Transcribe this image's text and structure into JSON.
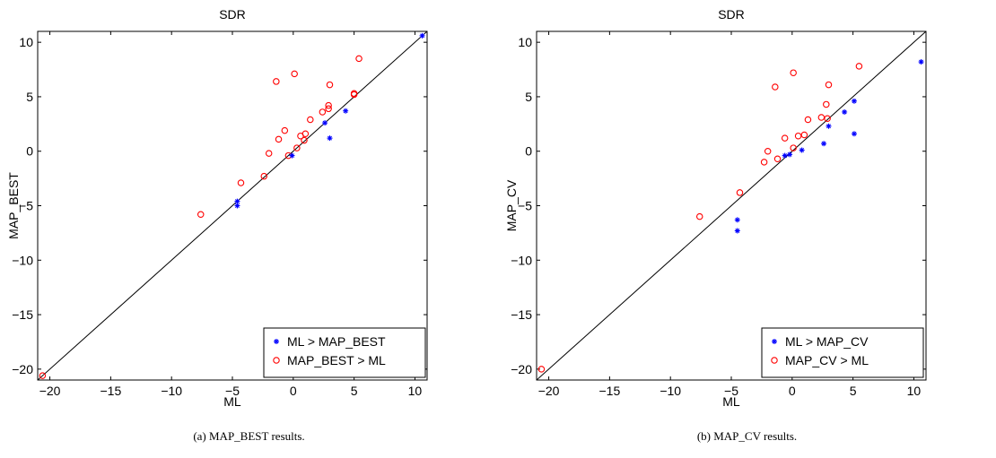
{
  "chart_data": [
    {
      "type": "scatter",
      "title": "SDR",
      "xlabel": "ML",
      "ylabel": "MAP_BEST",
      "xlim": [
        -21,
        11
      ],
      "ylim": [
        -21,
        11
      ],
      "xticks": [
        -20,
        -15,
        -10,
        -5,
        0,
        5,
        10
      ],
      "yticks": [
        10,
        5,
        0,
        -5,
        -10,
        -15,
        -20
      ],
      "xtick_labels": [
        "−20",
        "−15",
        "−10",
        "−5",
        "0",
        "5",
        "10"
      ],
      "ytick_labels": [
        "10",
        "5",
        "0",
        "−5",
        "−10",
        "−15",
        "−20"
      ],
      "diagonal": [
        [
          -21,
          -21
        ],
        [
          11,
          11
        ]
      ],
      "legend_position": "bottom-right",
      "caption": "(a) MAP_BEST results.",
      "series": [
        {
          "name": "ML > MAP_BEST",
          "marker": "asterisk",
          "color": "#0000ff",
          "x": [
            10.6,
            4.3,
            2.6,
            3.0,
            -0.1,
            -4.6,
            -4.6
          ],
          "y": [
            10.6,
            3.7,
            2.6,
            1.2,
            -0.4,
            -4.6,
            -5.0
          ]
        },
        {
          "name": "MAP_BEST > ML",
          "marker": "circle",
          "color": "#ff0000",
          "x": [
            -1.4,
            0.1,
            5.4,
            3.0,
            2.9,
            2.9,
            5.0,
            5.0,
            2.4,
            1.4,
            -0.7,
            0.6,
            1.0,
            0.9,
            0.3,
            -1.2,
            -2.0,
            -0.4,
            -2.4,
            -4.3,
            -7.6,
            -20.6
          ],
          "y": [
            6.4,
            7.1,
            8.5,
            6.1,
            4.2,
            3.9,
            5.3,
            5.2,
            3.6,
            2.9,
            1.9,
            1.4,
            1.6,
            1.0,
            0.3,
            1.1,
            -0.2,
            -0.4,
            -2.3,
            -2.9,
            -5.8,
            -20.6
          ]
        }
      ]
    },
    {
      "type": "scatter",
      "title": "SDR",
      "xlabel": "ML",
      "ylabel": "MAP_CV",
      "xlim": [
        -21,
        11
      ],
      "ylim": [
        -21,
        11
      ],
      "xticks": [
        -20,
        -15,
        -10,
        -5,
        0,
        5,
        10
      ],
      "yticks": [
        10,
        5,
        0,
        -5,
        -10,
        -15,
        -20
      ],
      "xtick_labels": [
        "−20",
        "−15",
        "−10",
        "−5",
        "0",
        "5",
        "10"
      ],
      "ytick_labels": [
        "10",
        "5",
        "0",
        "−5",
        "−10",
        "−15",
        "−20"
      ],
      "diagonal": [
        [
          -21,
          -21
        ],
        [
          11,
          11
        ]
      ],
      "legend_position": "bottom-right",
      "caption": "(b) MAP_CV results.",
      "series": [
        {
          "name": "ML > MAP_CV",
          "marker": "asterisk",
          "color": "#0000ff",
          "x": [
            10.6,
            5.1,
            4.3,
            3.0,
            2.6,
            5.1,
            0.8,
            -0.2,
            -0.6,
            -4.5,
            -4.5
          ],
          "y": [
            8.2,
            4.6,
            3.6,
            2.3,
            0.7,
            1.6,
            0.1,
            -0.3,
            -0.4,
            -6.3,
            -7.3
          ]
        },
        {
          "name": "MAP_CV > ML",
          "marker": "circle",
          "color": "#ff0000",
          "x": [
            5.5,
            0.1,
            -1.4,
            3.0,
            2.8,
            2.4,
            2.9,
            1.3,
            1.0,
            0.5,
            -0.6,
            0.1,
            -2.0,
            -1.2,
            -2.3,
            -4.3,
            -7.6,
            -20.6
          ],
          "y": [
            7.8,
            7.2,
            5.9,
            6.1,
            4.3,
            3.1,
            3.0,
            2.9,
            1.5,
            1.4,
            1.2,
            0.3,
            0.0,
            -0.7,
            -1.0,
            -3.8,
            -6.0,
            -20.0
          ]
        }
      ]
    }
  ]
}
